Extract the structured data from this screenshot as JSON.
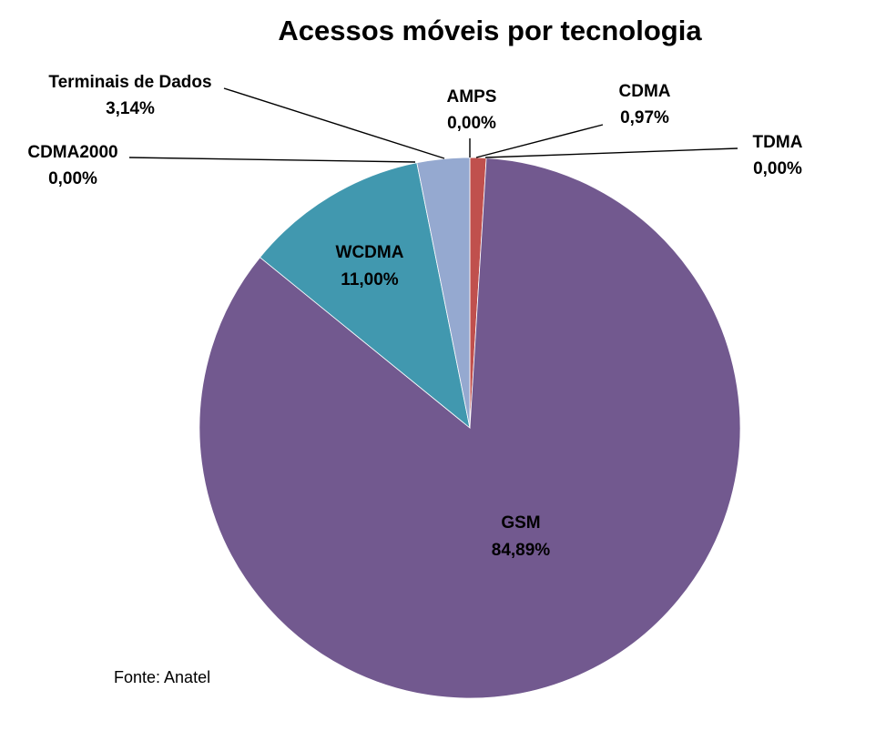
{
  "chart_data": {
    "type": "pie",
    "title": "Acessos móveis por tecnologia",
    "source": "Fonte: Anatel",
    "slices": [
      {
        "label": "AMPS",
        "value": 0.0,
        "value_label": "0,00%",
        "color": "#4F81BD"
      },
      {
        "label": "CDMA",
        "value": 0.97,
        "value_label": "0,97%",
        "color": "#C0504D"
      },
      {
        "label": "TDMA",
        "value": 0.0,
        "value_label": "0,00%",
        "color": "#9BBB59"
      },
      {
        "label": "GSM",
        "value": 84.89,
        "value_label": "84,89%",
        "color": "#72598F"
      },
      {
        "label": "WCDMA",
        "value": 11.0,
        "value_label": "11,00%",
        "color": "#4198AF"
      },
      {
        "label": "CDMA2000",
        "value": 0.0,
        "value_label": "0,00%",
        "color": "#F79646"
      },
      {
        "label": "Terminais de Dados",
        "value": 3.14,
        "value_label": "3,14%",
        "color": "#95A9D0"
      }
    ]
  }
}
